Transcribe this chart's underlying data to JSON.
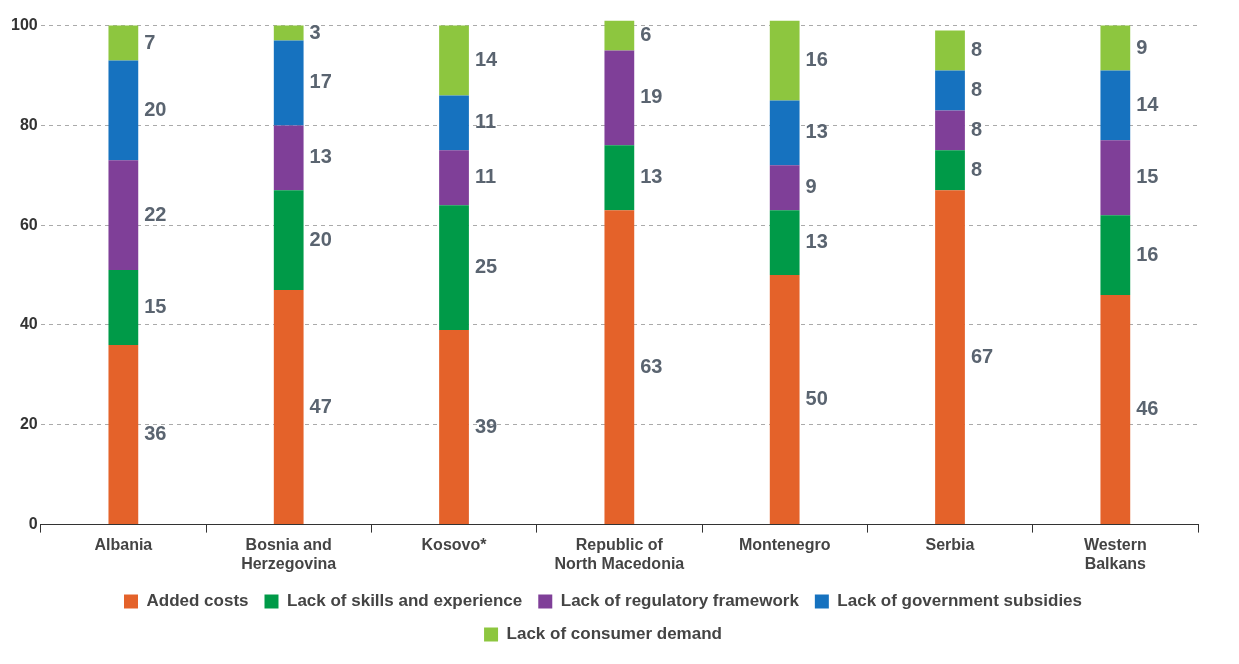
{
  "chart_data": {
    "type": "bar",
    "stacked": true,
    "categories": [
      "Albania",
      "Bosnia and Herzegovina",
      "Kosovo*",
      "Republic of North Macedonia",
      "Montenegro",
      "Serbia",
      "Western Balkans"
    ],
    "series": [
      {
        "name": "Added costs",
        "color": "#e4622a",
        "values": [
          36,
          47,
          39,
          63,
          50,
          67,
          46
        ]
      },
      {
        "name": "Lack of skills and experience",
        "color": "#009a48",
        "values": [
          15,
          20,
          25,
          13,
          13,
          8,
          16
        ]
      },
      {
        "name": "Lack of regulatory framework",
        "color": "#7f3f98",
        "values": [
          22,
          13,
          11,
          19,
          9,
          8,
          15
        ]
      },
      {
        "name": "Lack of government subsidies",
        "color": "#1672bf",
        "values": [
          20,
          17,
          11,
          null,
          13,
          8,
          14
        ]
      },
      {
        "name": "Lack of consumer demand",
        "color": "#8dc63f",
        "values": [
          7,
          3,
          14,
          6,
          16,
          8,
          9
        ]
      }
    ],
    "ylim": [
      0,
      101
    ],
    "yticks": [
      0,
      20,
      40,
      60,
      80,
      100
    ],
    "grid": "y",
    "legend": "bottom",
    "data_labels": true
  }
}
